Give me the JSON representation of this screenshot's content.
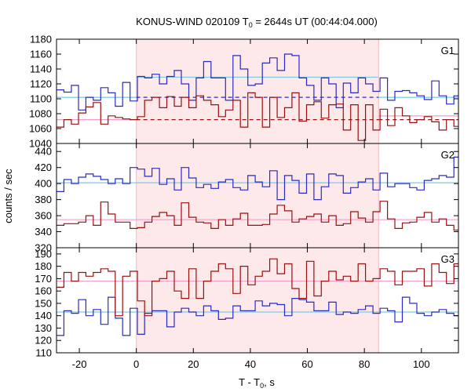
{
  "chart_data": {
    "type": "line",
    "title": {
      "prefix": "KONUS-WIND 020109 T",
      "sub": "0",
      "suffix": " = 2644s UT (00:44:04.000)"
    },
    "xlabel": {
      "prefix": "T - T",
      "sub": "0",
      "suffix": ", s"
    },
    "ylabel": "counts / sec",
    "xlim": [
      -28,
      113
    ],
    "xticks": [
      -20,
      0,
      20,
      40,
      60,
      80,
      100
    ],
    "grid": false,
    "highlight": {
      "x0": 0,
      "x1": 85,
      "color": "#fde8ea"
    },
    "colors": {
      "blue": "#2b2bbf",
      "red": "#9a1010",
      "cyan": "#7ec8e8",
      "pink": "#f0a0c8"
    },
    "panels": [
      {
        "name": "G1",
        "ylim": [
          1040,
          1180
        ],
        "yticks": [
          1040,
          1060,
          1080,
          1100,
          1120,
          1140,
          1160,
          1180
        ],
        "series": [
          {
            "color": "blue",
            "x": [
              -28,
              -25.4,
              -22.8,
              -20.3,
              -17.7,
              -15.1,
              -12.5,
              -9.9,
              -7.4,
              -4.8,
              -2.2,
              0.4,
              2.9,
              5.5,
              8.1,
              10.7,
              13.3,
              15.8,
              18.4,
              21,
              23.6,
              26.2,
              28.8,
              31.3,
              33.9,
              36.5,
              39.1,
              41.7,
              44.2,
              46.8,
              49.4,
              52,
              54.6,
              57.1,
              59.7,
              62.3,
              64.9,
              67.5,
              70.1,
              72.6,
              75.2,
              77.8,
              80.4,
              83,
              85.5,
              88.1,
              90.7,
              93.3,
              95.9,
              98.4,
              101,
              103.6,
              106.2,
              108.8,
              111.4,
              113
            ],
            "y": [
              1112,
              1109,
              1118,
              1085,
              1102,
              1098,
              1115,
              1108,
              1090,
              1122,
              1097,
              1130,
              1128,
              1133,
              1120,
              1130,
              1138,
              1120,
              1098,
              1128,
              1150,
              1128,
              1128,
              1098,
              1158,
              1140,
              1118,
              1120,
              1148,
              1155,
              1138,
              1160,
              1158,
              1128,
              1118,
              1098,
              1128,
              1120,
              1088,
              1121,
              1108,
              1128,
              1120,
              1110,
              1128,
              1098,
              1110,
              1111,
              1108,
              1104,
              1099,
              1124,
              1104,
              1093,
              1104,
              1118
            ]
          },
          {
            "color": "red",
            "x": [
              -28,
              -25.4,
              -22.8,
              -20.3,
              -17.7,
              -15.1,
              -12.5,
              -9.9,
              -7.4,
              -4.8,
              -2.2,
              0.4,
              2.9,
              5.5,
              8.1,
              10.7,
              13.3,
              15.8,
              18.4,
              21,
              23.6,
              26.2,
              28.8,
              31.3,
              33.9,
              36.5,
              39.1,
              41.7,
              44.2,
              46.8,
              49.4,
              52,
              54.6,
              57.1,
              59.7,
              62.3,
              64.9,
              67.5,
              70.1,
              72.6,
              75.2,
              77.8,
              80.4,
              83,
              85.5,
              88.1,
              90.7,
              93.3,
              95.9,
              98.4,
              101,
              103.6,
              106.2,
              108.8,
              111.4,
              113
            ],
            "y": [
              1062,
              1072,
              1066,
              1081,
              1089,
              1095,
              1066,
              1077,
              1075,
              1073,
              1072,
              1076,
              1098,
              1102,
              1088,
              1103,
              1090,
              1102,
              1088,
              1104,
              1098,
              1092,
              1076,
              1085,
              1098,
              1062,
              1108,
              1102,
              1062,
              1102,
              1075,
              1088,
              1108,
              1070,
              1092,
              1096,
              1074,
              1092,
              1093,
              1058,
              1092,
              1044,
              1092,
              1058,
              1086,
              1064,
              1088,
              1077,
              1068,
              1072,
              1076,
              1069,
              1058,
              1072,
              1063,
              1083
            ]
          }
        ],
        "hlines": [
          {
            "color": "cyan",
            "x0": -28,
            "x1": 0,
            "y": 1102,
            "dash": false
          },
          {
            "color": "cyan",
            "x0": 0,
            "x1": 85,
            "y": 1129,
            "dash": false
          },
          {
            "color": "cyan",
            "x0": 85,
            "x1": 113,
            "y": 1102,
            "dash": false
          },
          {
            "color": "pink",
            "x0": -28,
            "x1": 0,
            "y": 1072,
            "dash": false
          },
          {
            "color": "pink",
            "x0": 85,
            "x1": 113,
            "y": 1077,
            "dash": false
          },
          {
            "color": "blue",
            "x0": 0,
            "x1": 85,
            "y": 1102,
            "dash": true
          },
          {
            "color": "red",
            "x0": 0,
            "x1": 85,
            "y": 1072,
            "dash": true
          },
          {
            "color": "red",
            "x0": 85,
            "x1": 113,
            "y": 1072,
            "dash": true
          }
        ]
      },
      {
        "name": "G2",
        "ylim": [
          320,
          450
        ],
        "yticks": [
          320,
          340,
          360,
          380,
          400,
          420,
          440
        ],
        "series": [
          {
            "color": "blue",
            "x": [
              -28,
              -25.4,
              -22.8,
              -20.3,
              -17.7,
              -15.1,
              -12.5,
              -9.9,
              -7.4,
              -4.8,
              -2.2,
              0.4,
              2.9,
              5.5,
              8.1,
              10.7,
              13.3,
              15.8,
              18.4,
              21,
              23.6,
              26.2,
              28.8,
              31.3,
              33.9,
              36.5,
              39.1,
              41.7,
              44.2,
              46.8,
              49.4,
              52,
              54.6,
              57.1,
              59.7,
              62.3,
              64.9,
              67.5,
              70.1,
              72.6,
              75.2,
              77.8,
              80.4,
              83,
              85.5,
              88.1,
              90.7,
              93.3,
              95.9,
              98.4,
              101,
              103.6,
              106.2,
              108.8,
              111.4,
              113
            ],
            "y": [
              390,
              405,
              400,
              408,
              412,
              409,
              405,
              400,
              406,
              400,
              420,
              418,
              409,
              419,
              399,
              406,
              392,
              420,
              407,
              395,
              399,
              394,
              402,
              405,
              395,
              392,
              410,
              402,
              396,
              416,
              380,
              410,
              404,
              388,
              412,
              380,
              396,
              412,
              410,
              388,
              395,
              402,
              406,
              392,
              413,
              396,
              400,
              400,
              395,
              392,
              404,
              406,
              410,
              408,
              433,
              418
            ]
          },
          {
            "color": "red",
            "x": [
              -28,
              -25.4,
              -22.8,
              -20.3,
              -17.7,
              -15.1,
              -12.5,
              -9.9,
              -7.4,
              -4.8,
              -2.2,
              0.4,
              2.9,
              5.5,
              8.1,
              10.7,
              13.3,
              15.8,
              18.4,
              21,
              23.6,
              26.2,
              28.8,
              31.3,
              33.9,
              36.5,
              39.1,
              41.7,
              44.2,
              46.8,
              49.4,
              52,
              54.6,
              57.1,
              59.7,
              62.3,
              64.9,
              67.5,
              70.1,
              72.6,
              75.2,
              77.8,
              80.4,
              83,
              85.5,
              88.1,
              90.7,
              93.3,
              95.9,
              98.4,
              101,
              103.6,
              106.2,
              108.8,
              111.4,
              113
            ],
            "y": [
              348,
              350,
              350,
              352,
              360,
              348,
              377,
              362,
              352,
              352,
              344,
              345,
              352,
              359,
              364,
              360,
              348,
              376,
              358,
              352,
              351,
              344,
              355,
              348,
              356,
              363,
              348,
              348,
              349,
              362,
              373,
              366,
              352,
              356,
              359,
              362,
              352,
              360,
              348,
              350,
              365,
              357,
              352,
              365,
              378,
              356,
              344,
              351,
              352,
              358,
              364,
              352,
              356,
              348,
              342,
              378
            ]
          }
        ],
        "hlines": [
          {
            "color": "cyan",
            "x0": -28,
            "x1": 113,
            "y": 401,
            "dash": false
          },
          {
            "color": "pink",
            "x0": -28,
            "x1": 113,
            "y": 355,
            "dash": false
          }
        ]
      },
      {
        "name": "G3",
        "ylim": [
          110,
          195
        ],
        "yticks": [
          110,
          120,
          130,
          140,
          150,
          160,
          170,
          180,
          190
        ],
        "series": [
          {
            "color": "blue",
            "x": [
              -28,
              -25.4,
              -22.8,
              -20.3,
              -17.7,
              -15.1,
              -12.5,
              -9.9,
              -7.4,
              -4.8,
              -2.2,
              0.4,
              2.9,
              5.5,
              8.1,
              10.7,
              13.3,
              15.8,
              18.4,
              21,
              23.6,
              26.2,
              28.8,
              31.3,
              33.9,
              36.5,
              39.1,
              41.7,
              44.2,
              46.8,
              49.4,
              52,
              54.6,
              57.1,
              59.7,
              62.3,
              64.9,
              67.5,
              70.1,
              72.6,
              75.2,
              77.8,
              80.4,
              83,
              85.5,
              88.1,
              90.7,
              93.3,
              95.9,
              98.4,
              101,
              103.6,
              106.2,
              108.8,
              111.4,
              113
            ],
            "y": [
              124,
              144,
              142,
              153,
              140,
              145,
              133,
              155,
              138,
              124,
              146,
              125,
              142,
              144,
              144,
              131,
              143,
              146,
              143,
              140,
              148,
              144,
              137,
              138,
              148,
              144,
              144,
              152,
              148,
              150,
              149,
              140,
              154,
              153,
              151,
              144,
              144,
              151,
              141,
              143,
              142,
              145,
              148,
              142,
              146,
              144,
              135,
              155,
              150,
              142,
              140,
              143,
              145,
              142,
              140,
              142
            ]
          },
          {
            "color": "red",
            "x": [
              -28,
              -25.4,
              -22.8,
              -20.3,
              -17.7,
              -15.1,
              -12.5,
              -9.9,
              -7.4,
              -4.8,
              -2.2,
              0.4,
              2.9,
              5.5,
              8.1,
              10.7,
              13.3,
              15.8,
              18.4,
              21,
              23.6,
              26.2,
              28.8,
              31.3,
              33.9,
              36.5,
              39.1,
              41.7,
              44.2,
              46.8,
              49.4,
              52,
              54.6,
              57.1,
              59.7,
              62.3,
              64.9,
              67.5,
              70.1,
              72.6,
              75.2,
              77.8,
              80.4,
              83,
              85.5,
              88.1,
              90.7,
              93.3,
              95.9,
              98.4,
              101,
              103.6,
              106.2,
              108.8,
              111.4,
              113
            ],
            "y": [
              163,
              175,
              168,
              175,
              172,
              175,
              178,
              176,
              140,
              172,
              176,
              152,
              140,
              168,
              170,
              176,
              160,
              154,
              178,
              154,
              168,
              176,
              182,
              178,
              158,
              180,
              165,
              172,
              176,
              186,
              174,
              182,
              162,
              154,
              184,
              156,
              168,
              176,
              169,
              172,
              168,
              182,
              168,
              170,
              178,
              176,
              165,
              176,
              176,
              178,
              164,
              182,
              175,
              166,
              182,
              176
            ]
          }
        ],
        "hlines": [
          {
            "color": "cyan",
            "x0": -28,
            "x1": 113,
            "y": 143,
            "dash": false
          },
          {
            "color": "pink",
            "x0": -28,
            "x1": 113,
            "y": 168,
            "dash": false
          }
        ]
      }
    ]
  }
}
